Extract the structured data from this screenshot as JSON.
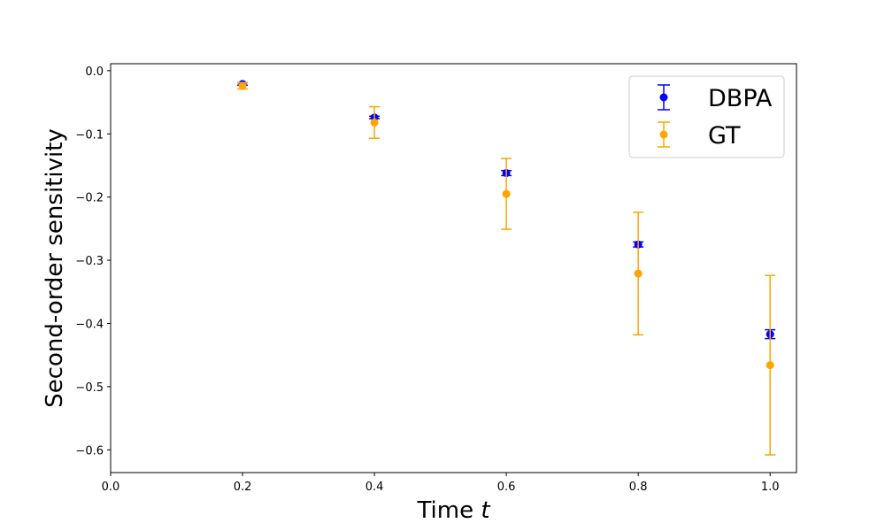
{
  "chart_data": {
    "type": "scatter",
    "xlabel": "Time",
    "xlabel_var": "t",
    "ylabel": "Second-order sensitivity",
    "xlim": [
      0.0,
      1.04
    ],
    "ylim": [
      -0.636,
      0.011
    ],
    "xticks": [
      0.0,
      0.2,
      0.4,
      0.6,
      0.8,
      1.0
    ],
    "xtick_labels": [
      "0.0",
      "0.2",
      "0.4",
      "0.6",
      "0.8",
      "1.0"
    ],
    "yticks": [
      0.0,
      -0.1,
      -0.2,
      -0.3,
      -0.4,
      -0.5,
      -0.6
    ],
    "ytick_labels": [
      "0.0",
      "−0.1",
      "−0.2",
      "−0.3",
      "−0.4",
      "−0.5",
      "−0.6"
    ],
    "grid": false,
    "legend_position": "top-right",
    "series": [
      {
        "name": "DBPA",
        "color": "#0000ff",
        "points": [
          {
            "x": 0.2,
            "y": -0.021,
            "err": 0.002
          },
          {
            "x": 0.4,
            "y": -0.074,
            "err": 0.002
          },
          {
            "x": 0.6,
            "y": -0.162,
            "err": 0.004
          },
          {
            "x": 0.8,
            "y": -0.275,
            "err": 0.004
          },
          {
            "x": 1.0,
            "y": -0.417,
            "err": 0.007
          }
        ]
      },
      {
        "name": "GT",
        "color": "#ffa500",
        "points": [
          {
            "x": 0.2,
            "y": -0.024,
            "err": 0.005
          },
          {
            "x": 0.4,
            "y": -0.082,
            "err": 0.025
          },
          {
            "x": 0.6,
            "y": -0.195,
            "err": 0.056
          },
          {
            "x": 0.8,
            "y": -0.321,
            "err": 0.097
          },
          {
            "x": 1.0,
            "y": -0.466,
            "err": 0.142
          }
        ]
      }
    ]
  }
}
